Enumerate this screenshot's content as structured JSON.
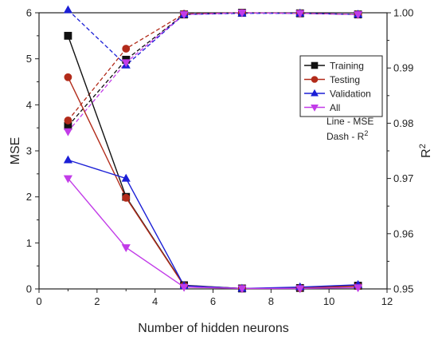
{
  "chart_data": {
    "type": "line",
    "xlabel": "Number of hidden neurons",
    "ylabel_left": "MSE",
    "ylabel_right_base": "R",
    "ylabel_right_sup": "2",
    "xlim": [
      0,
      12
    ],
    "ylim_left": [
      0,
      6
    ],
    "ylim_right": [
      0.95,
      1.0
    ],
    "x_ticks": [
      "0",
      "2",
      "4",
      "6",
      "8",
      "10",
      "12"
    ],
    "y_left_ticks": [
      "0",
      "1",
      "2",
      "3",
      "4",
      "5",
      "6"
    ],
    "y_right_ticks": [
      "0.95",
      "0.96",
      "0.97",
      "0.98",
      "0.99",
      "1.00"
    ],
    "grid": false,
    "legend_position": "top-right",
    "x": [
      1,
      3,
      5,
      7,
      9,
      11
    ],
    "series": [
      {
        "name": "Training",
        "color": "#111111",
        "marker": "square",
        "mse": [
          5.5,
          2.0,
          0.08,
          0.01,
          0.02,
          0.07
        ],
        "r2": [
          0.9795,
          0.9915,
          0.9997,
          1.0,
          0.9999,
          0.9997
        ]
      },
      {
        "name": "Testing",
        "color": "#b22b1a",
        "marker": "circle",
        "mse": [
          4.6,
          1.98,
          0.07,
          0.01,
          0.02,
          0.06
        ],
        "r2": [
          0.9805,
          0.9935,
          0.9998,
          1.0,
          0.9999,
          0.9997
        ]
      },
      {
        "name": "Validation",
        "color": "#1b1fd6",
        "marker": "triangle-up",
        "mse": [
          2.8,
          2.4,
          0.07,
          0.01,
          0.04,
          0.09
        ],
        "r2": [
          1.0005,
          0.9905,
          0.9997,
          0.9999,
          0.9999,
          0.9997
        ]
      },
      {
        "name": "All",
        "color": "#c23ce8",
        "marker": "triangle-down",
        "mse": [
          2.4,
          0.9,
          0.04,
          0.01,
          0.01,
          0.03
        ],
        "r2": [
          0.9785,
          0.991,
          0.9997,
          1.0,
          0.9999,
          0.9997
        ]
      }
    ],
    "annotation": {
      "line1": "Line - MSE",
      "line2_base": "Dash - R",
      "line2_sup": "2"
    }
  }
}
